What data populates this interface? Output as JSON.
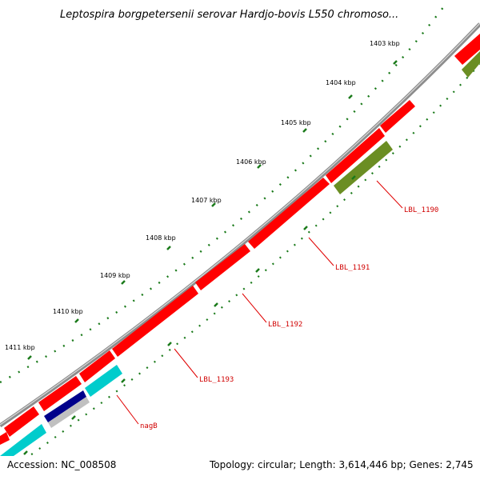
{
  "title": "Leptospira borgpetersenii serovar Hardjo-bovis L550 chromoso...",
  "footer": {
    "accession": "Accession: NC_008508",
    "stats": "Topology: circular; Length: 3,614,446 bp; Genes: 2,745"
  },
  "ticks": [
    {
      "label": "1403 kbp"
    },
    {
      "label": "1404 kbp"
    },
    {
      "label": "1405 kbp"
    },
    {
      "label": "1406 kbp"
    },
    {
      "label": "1407 kbp"
    },
    {
      "label": "1408 kbp"
    },
    {
      "label": "1409 kbp"
    },
    {
      "label": "1410 kbp"
    },
    {
      "label": "1411 kbp"
    }
  ],
  "gene_labels": [
    {
      "text": "LBL_1190"
    },
    {
      "text": "LBL_1191"
    },
    {
      "text": "LBL_1192"
    },
    {
      "text": "LBL_1193"
    },
    {
      "text": "nagB"
    }
  ],
  "colors": {
    "backbone": "#8c8c8c",
    "cds_outer": "#ff0000",
    "cds_green": "#6b8e23",
    "cds_navy": "#00008b",
    "cds_cyan": "#00cccc",
    "gray_feature": "#c0c0c0",
    "tick_green": "#1a7a1a",
    "label_red": "#d00000"
  }
}
